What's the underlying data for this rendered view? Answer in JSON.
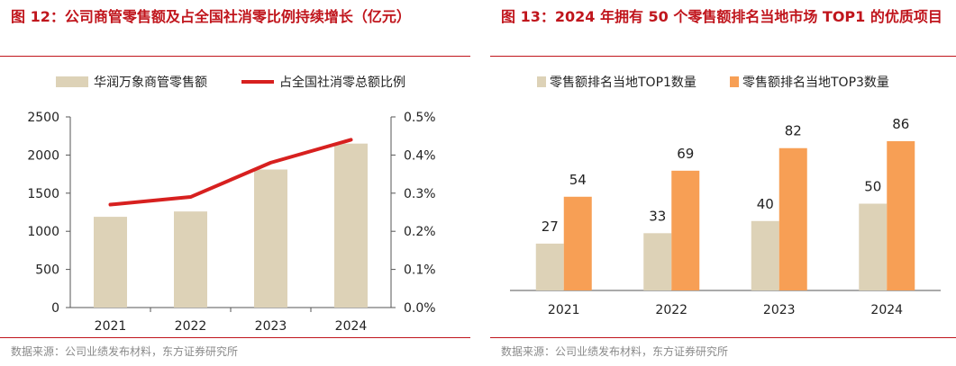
{
  "colors": {
    "accent_red": "#c0151c",
    "line_red": "#d7201f",
    "bar_beige": "#ddd2b7",
    "bar_orange": "#f79f55",
    "axis": "#555555",
    "source_gray": "#8a8a8a"
  },
  "left_panel": {
    "title": "图 12：公司商管零售额及占全国社消零比例持续增长（亿元）",
    "source": "数据来源：公司业绩发布材料，东方证券研究所"
  },
  "right_panel": {
    "title": "图 13：2024 年拥有 50 个零售额排名当地市场 TOP1 的优质项目",
    "source": "数据来源：公司业绩发布材料，东方证券研究所"
  },
  "chart_data": [
    {
      "type": "bar",
      "categories": [
        "2021",
        "2022",
        "2023",
        "2024"
      ],
      "series": [
        {
          "name": "华润万象商管零售额",
          "type": "bar",
          "axis": "left",
          "values": [
            1190,
            1260,
            1810,
            2150
          ]
        },
        {
          "name": "占全国社消零总额比例",
          "type": "line",
          "axis": "right",
          "values": [
            0.27,
            0.29,
            0.38,
            0.44
          ]
        }
      ],
      "yticks": [
        "0",
        "500",
        "1000",
        "1500",
        "2000",
        "2500"
      ],
      "y2ticks": [
        "0.0%",
        "0.1%",
        "0.2%",
        "0.3%",
        "0.4%",
        "0.5%"
      ],
      "ylim": [
        0,
        2500
      ],
      "y2lim": [
        0,
        0.5
      ],
      "legend": "top"
    },
    {
      "type": "bar",
      "categories": [
        "2021",
        "2022",
        "2023",
        "2024"
      ],
      "series": [
        {
          "name": "零售额排名当地TOP1数量",
          "values": [
            27,
            33,
            40,
            50
          ],
          "labels": [
            "27",
            "33",
            "40",
            "50"
          ]
        },
        {
          "name": "零售额排名当地TOP3数量",
          "values": [
            54,
            69,
            82,
            86
          ],
          "labels": [
            "54",
            "69",
            "82",
            "86"
          ]
        }
      ],
      "ylim": [
        0,
        100
      ],
      "legend": "top"
    }
  ]
}
